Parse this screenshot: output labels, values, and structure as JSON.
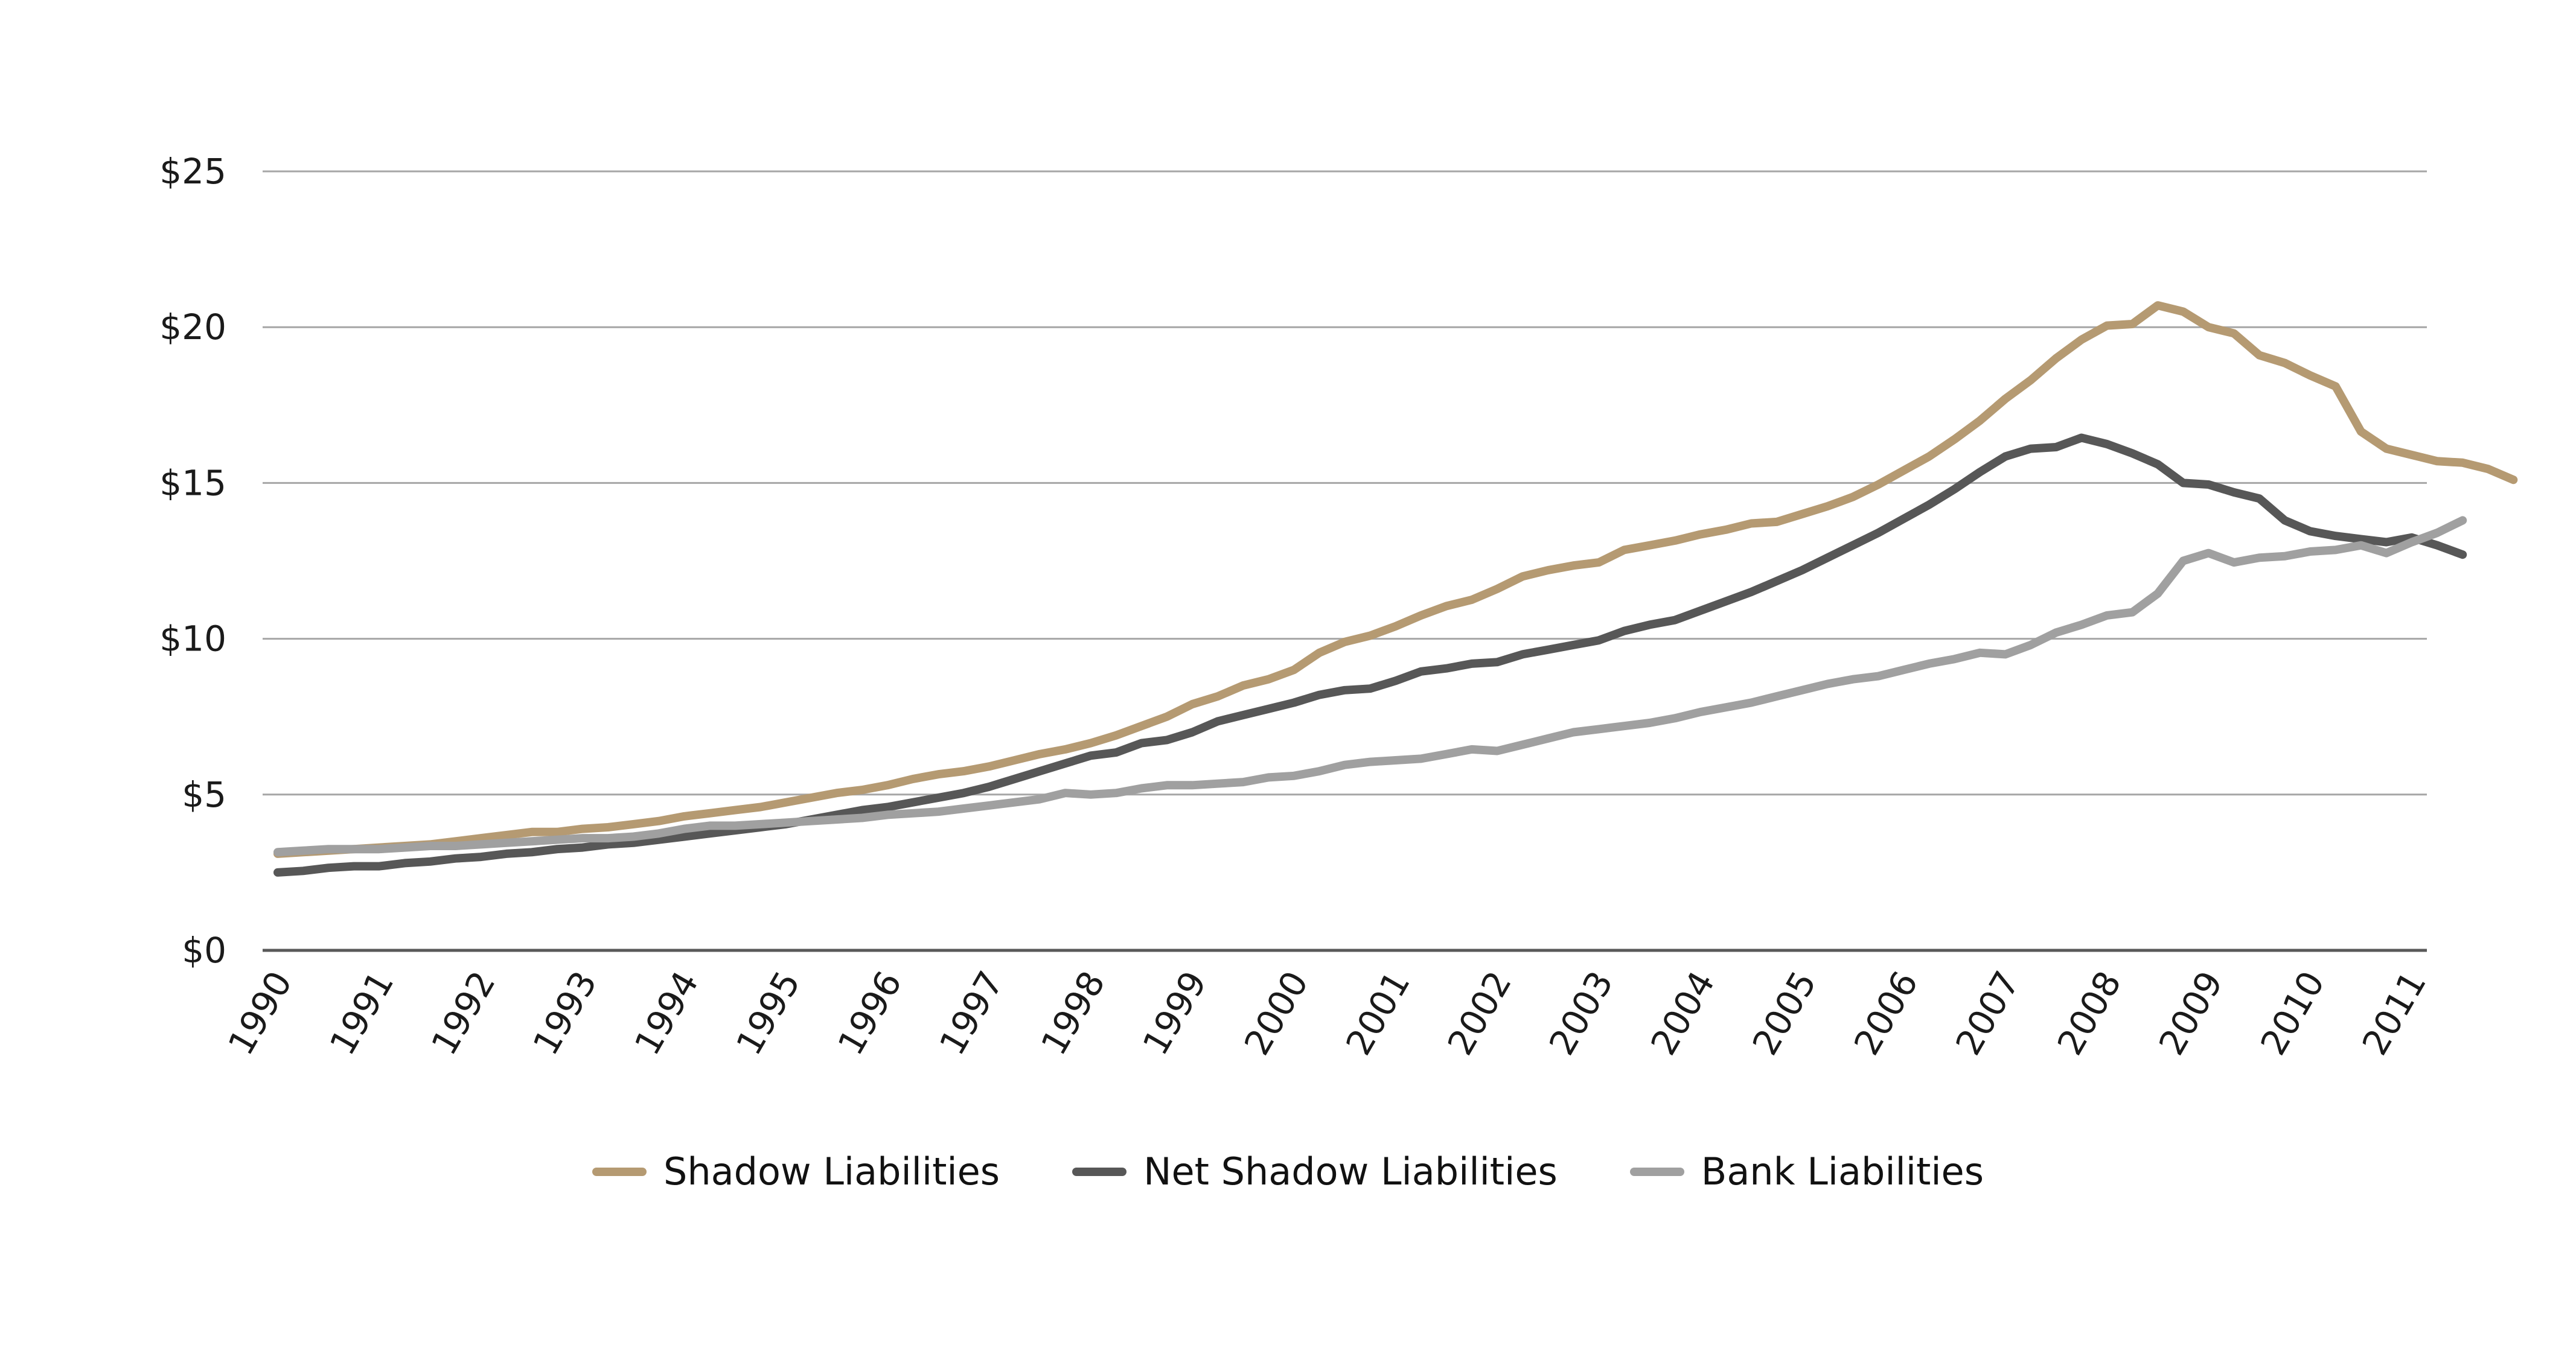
{
  "chart_data": {
    "type": "line",
    "title": "",
    "xlabel": "",
    "ylabel": "",
    "ylim": [
      0,
      25
    ],
    "xlim": [
      1990,
      2011
    ],
    "yticks": [
      0,
      5,
      10,
      15,
      20,
      25
    ],
    "ytick_labels": [
      "$0",
      "$5",
      "$10",
      "$15",
      "$20",
      "$25"
    ],
    "xtick_labels": [
      "1990",
      "1991",
      "1992",
      "1993",
      "1994",
      "1995",
      "1996",
      "1997",
      "1998",
      "1999",
      "2000",
      "2001",
      "2002",
      "2003",
      "2004",
      "2005",
      "2006",
      "2007",
      "2008",
      "2009",
      "2010",
      "2011"
    ],
    "grid": true,
    "legend_position": "bottom",
    "x_start": 1990,
    "x_step": 0.25,
    "series": [
      {
        "name": "Shadow Liabilities",
        "color": "#b59a72",
        "values": [
          3.1,
          3.15,
          3.2,
          3.25,
          3.3,
          3.35,
          3.4,
          3.5,
          3.6,
          3.7,
          3.8,
          3.8,
          3.9,
          3.95,
          4.05,
          4.15,
          4.3,
          4.4,
          4.5,
          4.6,
          4.75,
          4.9,
          5.05,
          5.15,
          5.3,
          5.5,
          5.65,
          5.75,
          5.9,
          6.1,
          6.3,
          6.45,
          6.65,
          6.9,
          7.2,
          7.5,
          7.9,
          8.15,
          8.5,
          8.7,
          9.0,
          9.55,
          9.9,
          10.1,
          10.4,
          10.75,
          11.05,
          11.25,
          11.6,
          12.0,
          12.2,
          12.35,
          12.45,
          12.85,
          13.0,
          13.15,
          13.35,
          13.5,
          13.7,
          13.75,
          14.0,
          14.25,
          14.55,
          14.95,
          15.4,
          15.85,
          16.4,
          17.0,
          17.7,
          18.3,
          19.0,
          19.6,
          20.05,
          20.1,
          20.7,
          20.5,
          20.0,
          19.8,
          19.1,
          18.85,
          18.45,
          18.1,
          16.65,
          16.1,
          15.9,
          15.7,
          15.65,
          15.45,
          15.1
        ]
      },
      {
        "name": "Net Shadow Liabilities",
        "color": "#575757",
        "values": [
          2.5,
          2.55,
          2.65,
          2.7,
          2.7,
          2.8,
          2.85,
          2.95,
          3.0,
          3.1,
          3.15,
          3.25,
          3.3,
          3.4,
          3.45,
          3.55,
          3.65,
          3.75,
          3.85,
          3.95,
          4.05,
          4.2,
          4.35,
          4.5,
          4.6,
          4.75,
          4.9,
          5.05,
          5.25,
          5.5,
          5.75,
          6.0,
          6.25,
          6.35,
          6.65,
          6.75,
          7.0,
          7.35,
          7.55,
          7.75,
          7.95,
          8.2,
          8.35,
          8.4,
          8.65,
          8.95,
          9.05,
          9.2,
          9.25,
          9.5,
          9.65,
          9.8,
          9.95,
          10.25,
          10.45,
          10.6,
          10.9,
          11.2,
          11.5,
          11.85,
          12.2,
          12.6,
          13.0,
          13.4,
          13.85,
          14.3,
          14.8,
          15.35,
          15.85,
          16.1,
          16.15,
          16.45,
          16.25,
          15.95,
          15.6,
          15.0,
          14.95,
          14.7,
          14.5,
          13.8,
          13.45,
          13.3,
          13.2,
          13.1,
          13.25,
          13.0,
          12.7
        ]
      },
      {
        "name": "Bank Liabilities",
        "color": "#a0a0a0",
        "values": [
          3.15,
          3.2,
          3.25,
          3.25,
          3.25,
          3.3,
          3.35,
          3.35,
          3.4,
          3.45,
          3.5,
          3.55,
          3.6,
          3.6,
          3.65,
          3.75,
          3.9,
          4.0,
          4.0,
          4.05,
          4.1,
          4.15,
          4.2,
          4.25,
          4.35,
          4.4,
          4.45,
          4.55,
          4.65,
          4.75,
          4.85,
          5.05,
          5.0,
          5.05,
          5.2,
          5.3,
          5.3,
          5.35,
          5.4,
          5.55,
          5.6,
          5.75,
          5.95,
          6.05,
          6.1,
          6.15,
          6.3,
          6.45,
          6.4,
          6.6,
          6.8,
          7.0,
          7.1,
          7.2,
          7.3,
          7.45,
          7.65,
          7.8,
          7.95,
          8.15,
          8.35,
          8.55,
          8.7,
          8.8,
          9.0,
          9.2,
          9.35,
          9.55,
          9.5,
          9.8,
          10.2,
          10.45,
          10.75,
          10.85,
          11.45,
          12.5,
          12.75,
          12.45,
          12.6,
          12.65,
          12.8,
          12.85,
          13.0,
          12.75,
          13.1,
          13.4,
          13.8
        ]
      }
    ]
  }
}
